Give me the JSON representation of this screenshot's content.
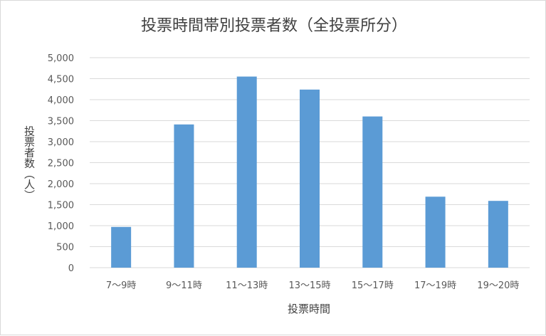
{
  "chart_data": {
    "type": "bar",
    "title": "投票時間帯別投票者数（全投票所分）",
    "xlabel": "投票時間",
    "ylabel": "投票者数（人）",
    "categories": [
      "7～9時",
      "9～11時",
      "11～13時",
      "13～15時",
      "15～17時",
      "17～19時",
      "19～20時"
    ],
    "values": [
      970,
      3410,
      4550,
      4240,
      3600,
      1690,
      1590
    ],
    "ylim": [
      0,
      5000
    ],
    "yticks": [
      "0",
      "500",
      "1,000",
      "1,500",
      "2,000",
      "2,500",
      "3,000",
      "3,500",
      "4,000",
      "4,500",
      "5,000"
    ],
    "grid": true,
    "legend": "none",
    "bar_color": "#5b9bd5",
    "grid_color": "#d9d9d9"
  }
}
